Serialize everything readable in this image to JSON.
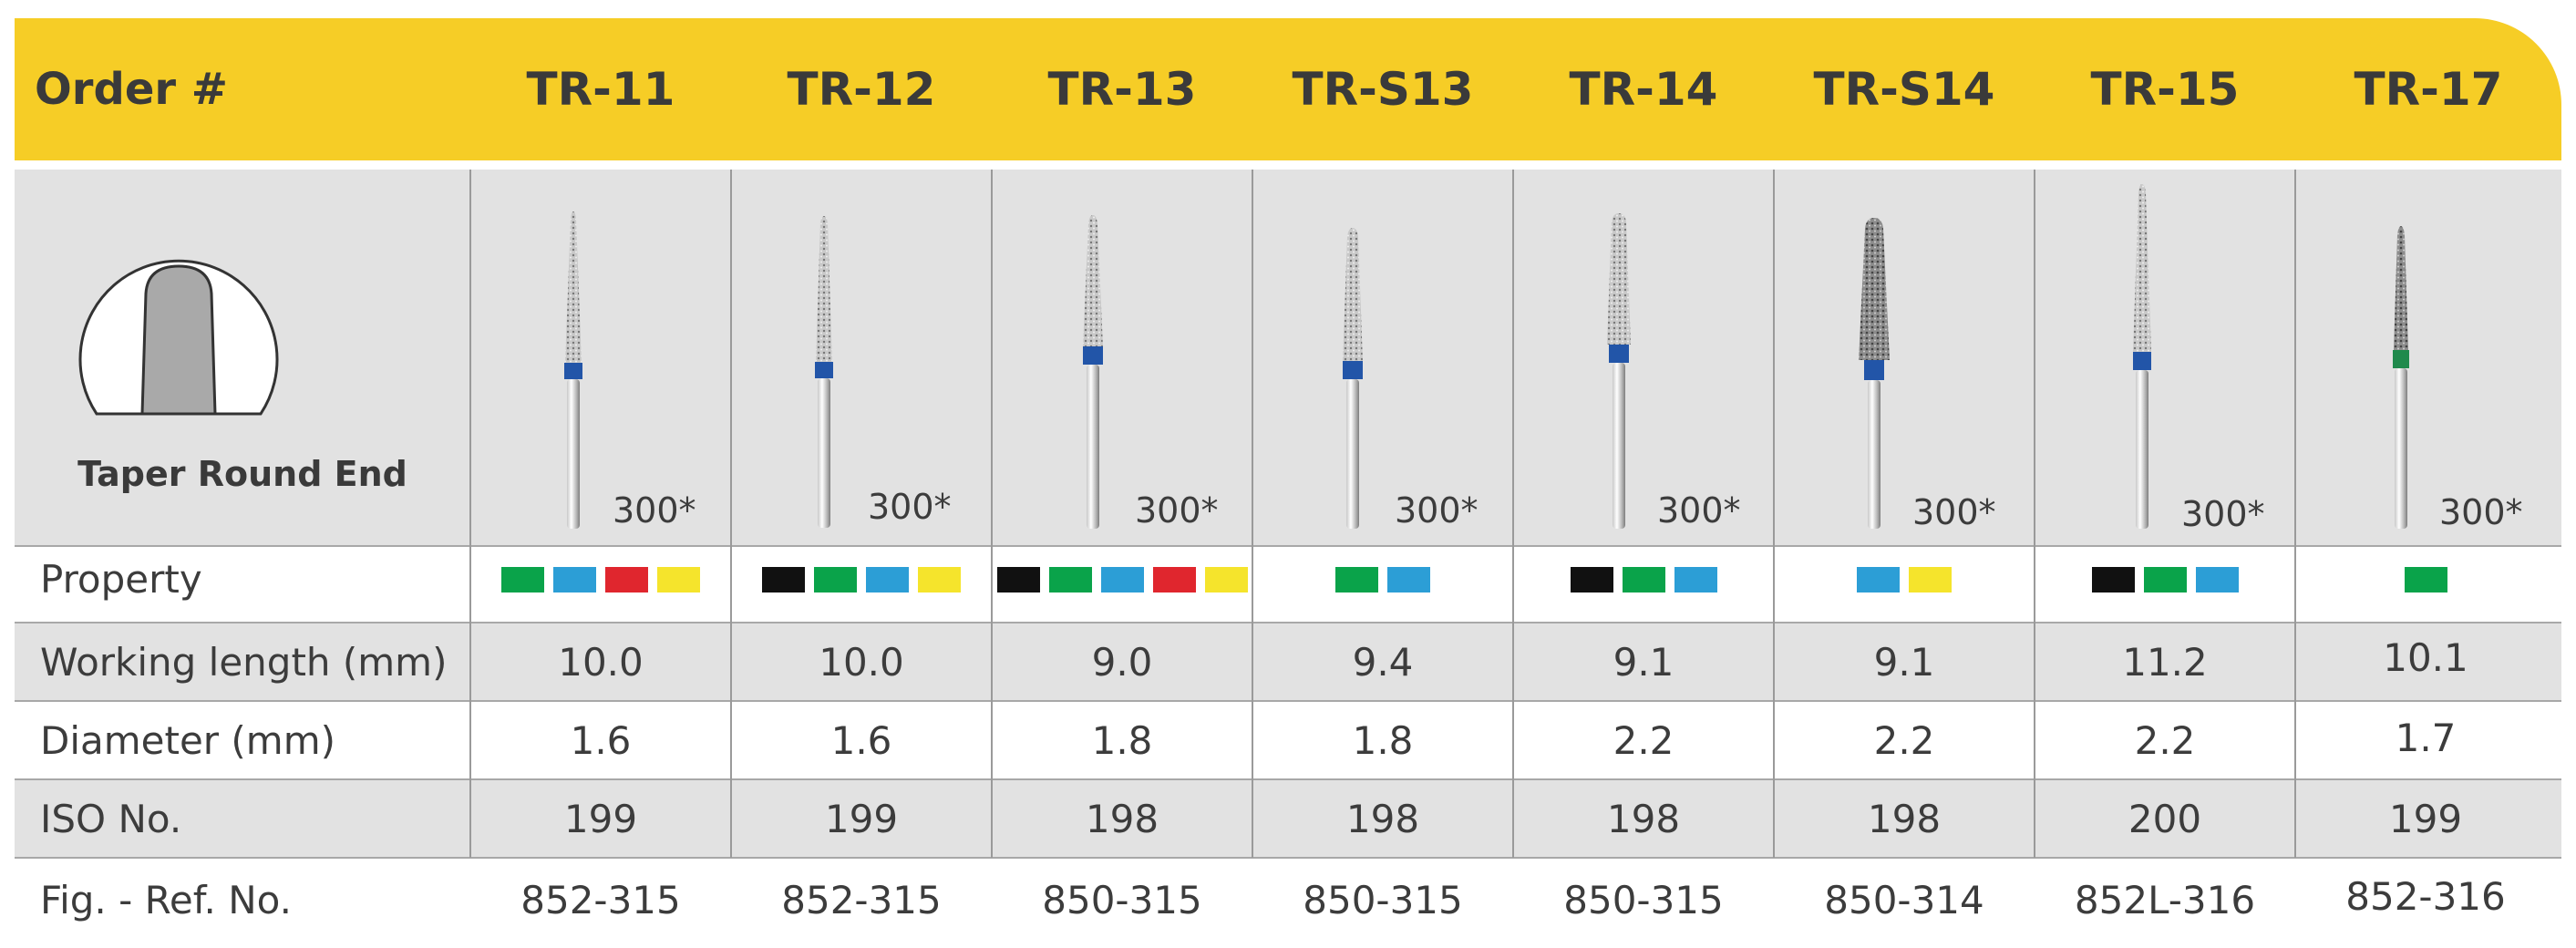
{
  "header": {
    "order_label": "Order #",
    "models": [
      "TR-11",
      "TR-12",
      "TR-13",
      "TR-S13",
      "TR-14",
      "TR-S14",
      "TR-15",
      "TR-17"
    ]
  },
  "shape": {
    "caption": "Taper Round End"
  },
  "grit_counts": [
    "300*",
    "300*",
    "300*",
    "300*",
    "300*",
    "300*",
    "300*",
    "300*"
  ],
  "rows": {
    "property": {
      "label": "Property",
      "swatches": [
        [
          "#0aa34a",
          "#2c9ed6",
          "#e0262e",
          "#f5e42c"
        ],
        [
          "#111111",
          "#0aa34a",
          "#2c9ed6",
          "#f5e42c"
        ],
        [
          "#111111",
          "#0aa34a",
          "#2c9ed6",
          "#e0262e",
          "#f5e42c"
        ],
        [
          "#0aa34a",
          "#2c9ed6"
        ],
        [
          "#111111",
          "#0aa34a",
          "#2c9ed6"
        ],
        [
          "#2c9ed6",
          "#f5e42c"
        ],
        [
          "#111111",
          "#0aa34a",
          "#2c9ed6"
        ],
        [
          "#0aa34a"
        ]
      ]
    },
    "working_length": {
      "label": "Working length (mm)",
      "values": [
        "10.0",
        "10.0",
        "9.0",
        "9.4",
        "9.1",
        "9.1",
        "11.2",
        "10.1"
      ]
    },
    "diameter": {
      "label": "Diameter (mm)",
      "values": [
        "1.6",
        "1.6",
        "1.8",
        "1.8",
        "2.2",
        "2.2",
        "2.2",
        "1.7"
      ]
    },
    "iso": {
      "label": "ISO No.",
      "values": [
        "199",
        "199",
        "198",
        "198",
        "198",
        "198",
        "200",
        "199"
      ]
    },
    "fig_ref": {
      "label": "Fig. - Ref. No.",
      "values": [
        "852-315",
        "852-315",
        "850-315",
        "850-315",
        "850-315",
        "850-314",
        "852L-316",
        "852-316"
      ]
    }
  },
  "colors": {
    "header_bg": "#f6cd26",
    "row_gray": "#e2e2e2",
    "band_blue": "#2255a8",
    "band_green": "#1f8a4c"
  }
}
